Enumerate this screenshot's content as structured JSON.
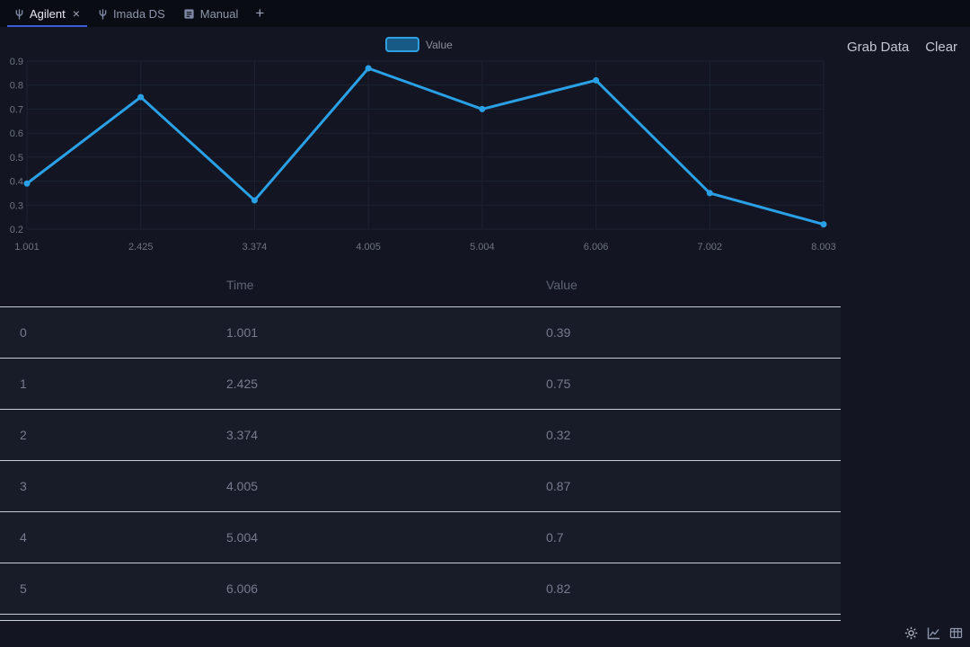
{
  "window": {
    "tabs": [
      {
        "label": "Agilent",
        "icon": "device-icon",
        "active": true,
        "close_label": "×"
      },
      {
        "label": "Imada DS",
        "icon": "device-icon",
        "active": false
      },
      {
        "label": "Manual",
        "icon": "manual-icon",
        "active": false
      }
    ],
    "new_tab_label": "+"
  },
  "actions": {
    "grab_data_label": "Grab Data",
    "clear_label": "Clear"
  },
  "chart_data": {
    "type": "line",
    "title": "",
    "legend": [
      "Value"
    ],
    "legend_position": "top",
    "x_labels": [
      "1.001",
      "2.425",
      "3.374",
      "4.005",
      "5.004",
      "6.006",
      "7.002",
      "8.003"
    ],
    "series": [
      {
        "name": "Value",
        "values": [
          0.39,
          0.75,
          0.32,
          0.87,
          0.7,
          0.82,
          0.35,
          0.22
        ]
      }
    ],
    "ylim": [
      0.2,
      0.9
    ],
    "yticks": [
      0.2,
      0.3,
      0.4,
      0.5,
      0.6,
      0.7,
      0.8,
      0.9
    ],
    "grid": true,
    "line_color": "#2aa1e6",
    "axis_label_color": "#6d7380",
    "grid_color": "#1d2232"
  },
  "table": {
    "headers": [
      "",
      "Time",
      "Value"
    ],
    "rows": [
      [
        "0",
        "1.001",
        "0.39"
      ],
      [
        "1",
        "2.425",
        "0.75"
      ],
      [
        "2",
        "3.374",
        "0.32"
      ],
      [
        "3",
        "4.005",
        "0.87"
      ],
      [
        "4",
        "5.004",
        "0.7"
      ],
      [
        "5",
        "6.006",
        "0.82"
      ]
    ]
  },
  "statusbar": {
    "icons": [
      "gear-icon",
      "line-chart-icon",
      "table-icon"
    ]
  },
  "colors": {
    "accent_blue": "#2aa1e6",
    "tab_underline": "#3d5bd6",
    "background": "#131622"
  }
}
